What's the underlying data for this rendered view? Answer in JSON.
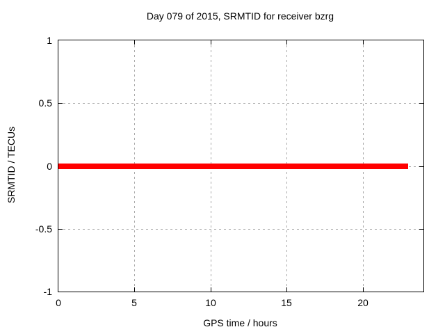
{
  "chart_data": {
    "type": "line",
    "title": "Day 079 of 2015, SRMTID for receiver bzrg",
    "xlabel": "GPS time / hours",
    "ylabel": "SRMTID / TECUs",
    "xlim": [
      0,
      24
    ],
    "ylim": [
      -1,
      1
    ],
    "xticks": [
      0,
      5,
      10,
      15,
      20
    ],
    "xtick_labels": [
      "0",
      "5",
      "10",
      "15",
      "20"
    ],
    "yticks": [
      -1,
      -0.5,
      0,
      0.5,
      1
    ],
    "ytick_labels": [
      "-1",
      "-0.5",
      "0",
      "0.5",
      "1"
    ],
    "grid": true,
    "grid_style": "dashed",
    "legend_position": "none",
    "series": [
      {
        "name": "SRMTID",
        "x": [
          0,
          23
        ],
        "y": [
          0,
          0
        ],
        "color": "#ff0000",
        "line_width": 8
      }
    ]
  },
  "colors": {
    "background": "#ffffff",
    "border": "#000000",
    "grid": "#a8a8a8",
    "text": "#000000",
    "line": "#ff0000"
  }
}
